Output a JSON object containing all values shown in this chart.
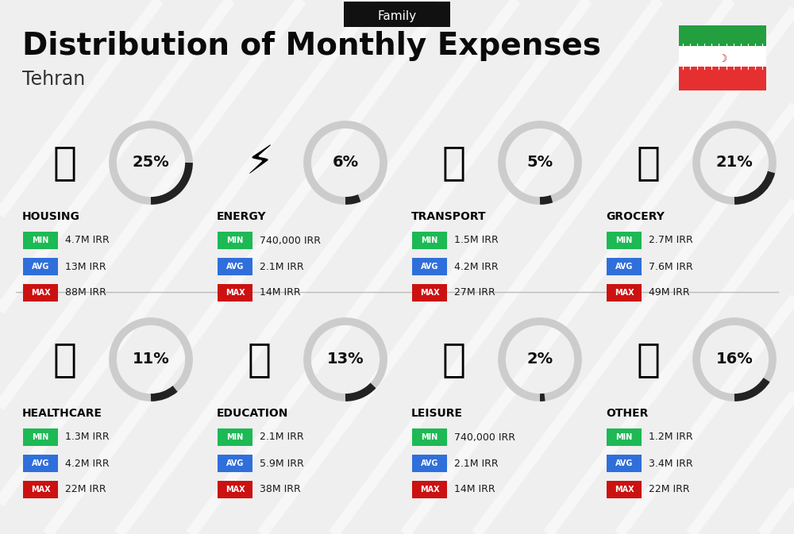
{
  "title": "Distribution of Monthly Expenses",
  "subtitle": "Family",
  "city": "Tehran",
  "background_color": "#efefef",
  "categories": [
    {
      "name": "HOUSING",
      "percent": 25,
      "min": "4.7M IRR",
      "avg": "13M IRR",
      "max": "88M IRR",
      "col": 0,
      "row": 0
    },
    {
      "name": "ENERGY",
      "percent": 6,
      "min": "740,000 IRR",
      "avg": "2.1M IRR",
      "max": "14M IRR",
      "col": 1,
      "row": 0
    },
    {
      "name": "TRANSPORT",
      "percent": 5,
      "min": "1.5M IRR",
      "avg": "4.2M IRR",
      "max": "27M IRR",
      "col": 2,
      "row": 0
    },
    {
      "name": "GROCERY",
      "percent": 21,
      "min": "2.7M IRR",
      "avg": "7.6M IRR",
      "max": "49M IRR",
      "col": 3,
      "row": 0
    },
    {
      "name": "HEALTHCARE",
      "percent": 11,
      "min": "1.3M IRR",
      "avg": "4.2M IRR",
      "max": "22M IRR",
      "col": 0,
      "row": 1
    },
    {
      "name": "EDUCATION",
      "percent": 13,
      "min": "2.1M IRR",
      "avg": "5.9M IRR",
      "max": "38M IRR",
      "col": 1,
      "row": 1
    },
    {
      "name": "LEISURE",
      "percent": 2,
      "min": "740,000 IRR",
      "avg": "2.1M IRR",
      "max": "14M IRR",
      "col": 2,
      "row": 1
    },
    {
      "name": "OTHER",
      "percent": 16,
      "min": "1.2M IRR",
      "avg": "3.4M IRR",
      "max": "22M IRR",
      "col": 3,
      "row": 1
    }
  ],
  "min_color": "#1db954",
  "avg_color": "#2f6fdb",
  "max_color": "#cc1111",
  "circle_bg_color": "#cccccc",
  "circle_fill_color": "#222222",
  "percent_fontsize": 14,
  "category_fontsize": 10,
  "badge_fontsize": 7,
  "value_fontsize": 9,
  "diag_line_color": "#ffffff",
  "diag_line_alpha": 0.55,
  "diag_line_lw": 10
}
